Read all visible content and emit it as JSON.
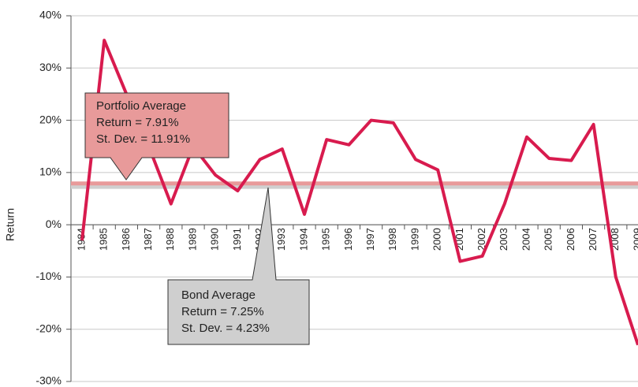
{
  "chart_data": {
    "type": "line",
    "y_label": "Return",
    "categories": [
      "1984",
      "1985",
      "1986",
      "1987",
      "1988",
      "1989",
      "1990",
      "1991",
      "1992",
      "1993",
      "1994",
      "1995",
      "1996",
      "1997",
      "1998",
      "1999",
      "2000",
      "2001",
      "2002",
      "2003",
      "2004",
      "2005",
      "2006",
      "2007",
      "2008",
      "2009"
    ],
    "series": [
      {
        "color": "#d81b4e",
        "values": [
          -3,
          35.3,
          25,
          15,
          4,
          15,
          9.5,
          6.5,
          12.5,
          14.5,
          2,
          16.3,
          15.3,
          20,
          19.5,
          12.5,
          10.5,
          -7,
          -6,
          4,
          16.8,
          12.7,
          12.3,
          19.2,
          -10,
          -23
        ]
      }
    ],
    "reference_lines": [
      {
        "value": 7.91,
        "color": "#e89a9a",
        "lines": [
          "Portfolio Average",
          "Return = 7.91%",
          "St. Dev. = 11.91%"
        ]
      },
      {
        "value": 7.25,
        "color": "#cfcfcf",
        "lines": [
          "Bond Average",
          "Return = 7.25%",
          "St. Dev. = 4.23%"
        ]
      }
    ],
    "ylim": [
      -30,
      40
    ],
    "yticks": [
      {
        "value": -30,
        "label": "-30%"
      },
      {
        "value": -20,
        "label": "-20%"
      },
      {
        "value": -10,
        "label": "-10%"
      },
      {
        "value": 0,
        "label": "0%"
      },
      {
        "value": 10,
        "label": "10%"
      },
      {
        "value": 20,
        "label": "20%"
      },
      {
        "value": 30,
        "label": "30%"
      },
      {
        "value": 40,
        "label": "40%"
      }
    ],
    "grid": true
  }
}
